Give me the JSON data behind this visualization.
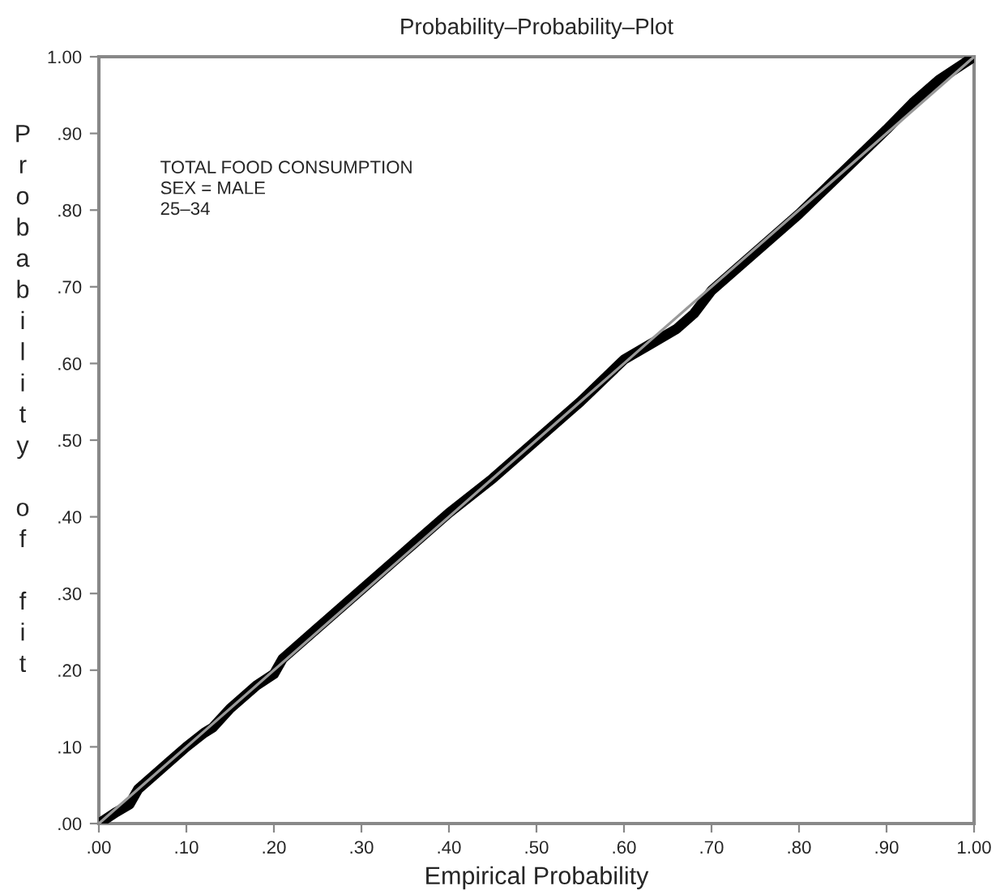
{
  "chart_data": {
    "type": "line",
    "title": "Probability–Probability–Plot",
    "xlabel": "Empirical Probability",
    "ylabel": "Probability of fit",
    "annotations": [
      "TOTAL FOOD CONSUMPTION\nSEX = MALE\n25–34"
    ],
    "series": [
      {
        "color": "#999999",
        "x": [
          0,
          1
        ],
        "values": [
          0,
          1
        ],
        "line_style": "solid"
      },
      {
        "color": "#000000",
        "x": [
          0,
          0.02,
          0.035,
          0.045,
          0.08,
          0.1,
          0.12,
          0.13,
          0.15,
          0.18,
          0.2,
          0.21,
          0.25,
          0.3,
          0.35,
          0.4,
          0.45,
          0.5,
          0.55,
          0.6,
          0.63,
          0.66,
          0.68,
          0.7,
          0.75,
          0.8,
          0.85,
          0.9,
          0.93,
          0.96,
          1
        ],
        "values": [
          0,
          0.015,
          0.025,
          0.045,
          0.08,
          0.1,
          0.118,
          0.125,
          0.15,
          0.18,
          0.195,
          0.215,
          0.255,
          0.305,
          0.355,
          0.405,
          0.45,
          0.5,
          0.55,
          0.605,
          0.625,
          0.645,
          0.665,
          0.695,
          0.745,
          0.795,
          0.85,
          0.905,
          0.94,
          0.97,
          1
        ],
        "line_style": "solid"
      }
    ],
    "xlim": [
      0,
      1
    ],
    "ylim": [
      0,
      1
    ],
    "xticks": [
      {
        "value": 0,
        "label": ".00"
      },
      {
        "value": 0.1,
        "label": ".10"
      },
      {
        "value": 0.2,
        "label": ".20"
      },
      {
        "value": 0.3,
        "label": ".30"
      },
      {
        "value": 0.4,
        "label": ".40"
      },
      {
        "value": 0.5,
        "label": ".50"
      },
      {
        "value": 0.6,
        "label": ".60"
      },
      {
        "value": 0.7,
        "label": ".70"
      },
      {
        "value": 0.8,
        "label": ".80"
      },
      {
        "value": 0.9,
        "label": ".90"
      },
      {
        "value": 1,
        "label": "1.00"
      }
    ],
    "yticks": [
      {
        "value": 0,
        "label": ".00"
      },
      {
        "value": 0.1,
        "label": ".10"
      },
      {
        "value": 0.2,
        "label": ".20"
      },
      {
        "value": 0.3,
        "label": ".30"
      },
      {
        "value": 0.4,
        "label": ".40"
      },
      {
        "value": 0.5,
        "label": ".50"
      },
      {
        "value": 0.6,
        "label": ".60"
      },
      {
        "value": 0.7,
        "label": ".70"
      },
      {
        "value": 0.8,
        "label": ".80"
      },
      {
        "value": 0.9,
        "label": ".90"
      },
      {
        "value": 1,
        "label": "1.00"
      }
    ],
    "grid": false,
    "legend": false,
    "marker": "none"
  }
}
